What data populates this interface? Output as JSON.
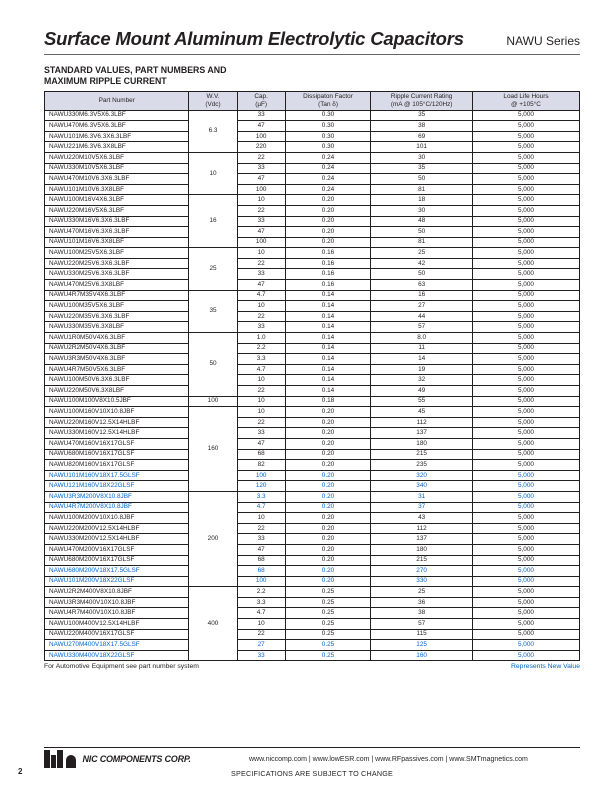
{
  "header": {
    "title": "Surface Mount Aluminum Electrolytic Capacitors",
    "series": "NAWU Series",
    "subtitle1": "STANDARD VALUES, PART NUMBERS AND",
    "subtitle2": "MAXIMUM RIPPLE CURRENT"
  },
  "table": {
    "columns": [
      "Part Number",
      "W.V.\n(Vdc)",
      "Cap.\n(µF)",
      "Dissipaton Factor\n(Tan δ)",
      "Ripple Current Rating\n(mA @ 105°C/120Hz)",
      "Load Life Hours\n@ +105°C"
    ],
    "groups": [
      {
        "wv": "6.3",
        "rows": [
          {
            "pn": "NAWU330M6.3V5X6.3LBF",
            "cap": "33",
            "df": "0.30",
            "rip": "35",
            "ll": "5,000"
          },
          {
            "pn": "NAWU470M6.3V5X6.3LBF",
            "cap": "47",
            "df": "0.30",
            "rip": "38",
            "ll": "5,000"
          },
          {
            "pn": "NAWU101M6.3V6.3X6.3LBF",
            "cap": "100",
            "df": "0.30",
            "rip": "69",
            "ll": "5,000"
          },
          {
            "pn": "NAWU221M6.3V6.3X8LBF",
            "cap": "220",
            "df": "0.30",
            "rip": "101",
            "ll": "5,000"
          }
        ]
      },
      {
        "wv": "10",
        "rows": [
          {
            "pn": "NAWU220M10V5X6.3LBF",
            "cap": "22",
            "df": "0.24",
            "rip": "30",
            "ll": "5,000"
          },
          {
            "pn": "NAWU330M10V5X6.3LBF",
            "cap": "33",
            "df": "0.24",
            "rip": "35",
            "ll": "5,000"
          },
          {
            "pn": "NAWU470M10V6.3X6.3LBF",
            "cap": "47",
            "df": "0.24",
            "rip": "50",
            "ll": "5,000"
          },
          {
            "pn": "NAWU101M10V6.3X8LBF",
            "cap": "100",
            "df": "0.24",
            "rip": "81",
            "ll": "5,000"
          }
        ]
      },
      {
        "wv": "16",
        "rows": [
          {
            "pn": "NAWU100M16V4X6.3LBF",
            "cap": "10",
            "df": "0.20",
            "rip": "18",
            "ll": "5,000"
          },
          {
            "pn": "NAWU220M16V5X6.3LBF",
            "cap": "22",
            "df": "0.20",
            "rip": "30",
            "ll": "5,000"
          },
          {
            "pn": "NAWU330M16V6.3X6.3LBF",
            "cap": "33",
            "df": "0.20",
            "rip": "48",
            "ll": "5,000"
          },
          {
            "pn": "NAWU470M16V6.3X6.3LBF",
            "cap": "47",
            "df": "0.20",
            "rip": "50",
            "ll": "5,000"
          },
          {
            "pn": "NAWU101M16V6.3X8LBF",
            "cap": "100",
            "df": "0.20",
            "rip": "81",
            "ll": "5,000"
          }
        ]
      },
      {
        "wv": "25",
        "rows": [
          {
            "pn": "NAWU100M25V5X6.3LBF",
            "cap": "10",
            "df": "0.16",
            "rip": "25",
            "ll": "5,000"
          },
          {
            "pn": "NAWU220M25V6.3X6.3LBF",
            "cap": "22",
            "df": "0.16",
            "rip": "42",
            "ll": "5,000"
          },
          {
            "pn": "NAWU330M25V6.3X6.3LBF",
            "cap": "33",
            "df": "0.16",
            "rip": "50",
            "ll": "5,000"
          },
          {
            "pn": "NAWU470M25V6.3X8LBF",
            "cap": "47",
            "df": "0.16",
            "rip": "63",
            "ll": "5,000"
          }
        ]
      },
      {
        "wv": "35",
        "rows": [
          {
            "pn": "NAWU4R7M35V4X6.3LBF",
            "cap": "4.7",
            "df": "0.14",
            "rip": "16",
            "ll": "5,000"
          },
          {
            "pn": "NAWU100M35V5X6.3LBF",
            "cap": "10",
            "df": "0.14",
            "rip": "27",
            "ll": "5,000"
          },
          {
            "pn": "NAWU220M35V6.3X6.3LBF",
            "cap": "22",
            "df": "0.14",
            "rip": "44",
            "ll": "5,000"
          },
          {
            "pn": "NAWU330M35V6.3X8LBF",
            "cap": "33",
            "df": "0.14",
            "rip": "57",
            "ll": "5,000"
          }
        ]
      },
      {
        "wv": "50",
        "rows": [
          {
            "pn": "NAWU1R0M50V4X6.3LBF",
            "cap": "1.0",
            "df": "0.14",
            "rip": "8.0",
            "ll": "5,000"
          },
          {
            "pn": "NAWU2R2M50V4X6.3LBF",
            "cap": "2.2",
            "df": "0.14",
            "rip": "11",
            "ll": "5,000"
          },
          {
            "pn": "NAWU3R3M50V4X6.3LBF",
            "cap": "3.3",
            "df": "0.14",
            "rip": "14",
            "ll": "5,000"
          },
          {
            "pn": "NAWU4R7M50V5X6.3LBF",
            "cap": "4.7",
            "df": "0.14",
            "rip": "19",
            "ll": "5,000"
          },
          {
            "pn": "NAWU100M50V6.3X6.3LBF",
            "cap": "10",
            "df": "0.14",
            "rip": "32",
            "ll": "5,000"
          },
          {
            "pn": "NAWU220M50V6.3X8LBF",
            "cap": "22",
            "df": "0.14",
            "rip": "49",
            "ll": "5,000"
          }
        ]
      },
      {
        "wv": "100",
        "rows": [
          {
            "pn": "NAWU100M100V8X10.5JBF",
            "cap": "10",
            "df": "0.18",
            "rip": "55",
            "ll": "5,000"
          }
        ]
      },
      {
        "wv": "160",
        "rows": [
          {
            "pn": "NAWU100M160V10X10.8JBF",
            "cap": "10",
            "df": "0.20",
            "rip": "45",
            "ll": "5,000"
          },
          {
            "pn": "NAWU220M160V12.5X14HLBF",
            "cap": "22",
            "df": "0.20",
            "rip": "112",
            "ll": "5,000"
          },
          {
            "pn": "NAWU330M160V12.5X14HLBF",
            "cap": "33",
            "df": "0.20",
            "rip": "137",
            "ll": "5,000"
          },
          {
            "pn": "NAWU470M160V16X17GLSF",
            "cap": "47",
            "df": "0.20",
            "rip": "180",
            "ll": "5,000"
          },
          {
            "pn": "NAWU680M160V16X17GLSF",
            "cap": "68",
            "df": "0.20",
            "rip": "215",
            "ll": "5,000"
          },
          {
            "pn": "NAWU820M160V16X17GLSF",
            "cap": "82",
            "df": "0.20",
            "rip": "235",
            "ll": "5,000"
          },
          {
            "pn": "NAWU101M160V18X17.5GLSF",
            "cap": "100",
            "df": "0.20",
            "rip": "320",
            "ll": "5,000",
            "blue": true
          },
          {
            "pn": "NAWU121M160V18X22GLSF",
            "cap": "120",
            "df": "0.20",
            "rip": "340",
            "ll": "5,000",
            "blue": true
          }
        ]
      },
      {
        "wv": "200",
        "rows": [
          {
            "pn": "NAWU3R3M200V8X10.8JBF",
            "cap": "3.3",
            "df": "0.20",
            "rip": "31",
            "ll": "5,000",
            "blue": true
          },
          {
            "pn": "NAWU4R7M200V8X10.8JBF",
            "cap": "4.7",
            "df": "0.20",
            "rip": "37",
            "ll": "5,000",
            "blue": true
          },
          {
            "pn": "NAWU100M200V10X10.8JBF",
            "cap": "10",
            "df": "0.20",
            "rip": "43",
            "ll": "5,000"
          },
          {
            "pn": "NAWU220M200V12.5X14HLBF",
            "cap": "22",
            "df": "0.20",
            "rip": "112",
            "ll": "5,000"
          },
          {
            "pn": "NAWU330M200V12.5X14HLBF",
            "cap": "33",
            "df": "0.20",
            "rip": "137",
            "ll": "5,000"
          },
          {
            "pn": "NAWU470M200V16X17GLSF",
            "cap": "47",
            "df": "0.20",
            "rip": "180",
            "ll": "5,000"
          },
          {
            "pn": "NAWU680M200V16X17GLSF",
            "cap": "68",
            "df": "0.20",
            "rip": "215",
            "ll": "5,000"
          },
          {
            "pn": "NAWU680M200V18X17.5GLSF",
            "cap": "68",
            "df": "0.20",
            "rip": "270",
            "ll": "5,000",
            "blue": true
          },
          {
            "pn": "NAWU101M200V18X22GLSF",
            "cap": "100",
            "df": "0.20",
            "rip": "330",
            "ll": "5,000",
            "blue": true
          }
        ]
      },
      {
        "wv": "400",
        "rows": [
          {
            "pn": "NAWU2R2M400V8X10.8JBF",
            "cap": "2.2",
            "df": "0.25",
            "rip": "25",
            "ll": "5,000"
          },
          {
            "pn": "NAWU3R3M400V10X10.8JBF",
            "cap": "3.3",
            "df": "0.25",
            "rip": "36",
            "ll": "5,000"
          },
          {
            "pn": "NAWU4R7M400V10X10.8JBF",
            "cap": "4.7",
            "df": "0.25",
            "rip": "38",
            "ll": "5,000"
          },
          {
            "pn": "NAWU100M400V12.5X14HLBF",
            "cap": "10",
            "df": "0.25",
            "rip": "57",
            "ll": "5,000"
          },
          {
            "pn": "NAWU220M400V16X17GLSF",
            "cap": "22",
            "df": "0.25",
            "rip": "115",
            "ll": "5,000"
          },
          {
            "pn": "NAWU270M400V18X17.5GLSF",
            "cap": "27",
            "df": "0.25",
            "rip": "125",
            "ll": "5,000",
            "blue": true
          },
          {
            "pn": "NAWU330M400V18X22GLSF",
            "cap": "33",
            "df": "0.25",
            "rip": "160",
            "ll": "5,000",
            "blue": true
          }
        ]
      }
    ]
  },
  "footnotes": {
    "left": "For Automotive Equipment see part number system",
    "right": "Represents New Value"
  },
  "footer": {
    "corp": "NIC COMPONENTS CORP.",
    "links": "www.niccomp.com   |  www.lowESR.com   |  www.RFpassives.com   |  www.SMTmagnetics.com",
    "spec": "SPECIFICATIONS ARE SUBJECT TO CHANGE",
    "page": "2"
  },
  "colors": {
    "header_bg": "#d9dbe8",
    "blue": "#0066cc",
    "text": "#231f20"
  }
}
